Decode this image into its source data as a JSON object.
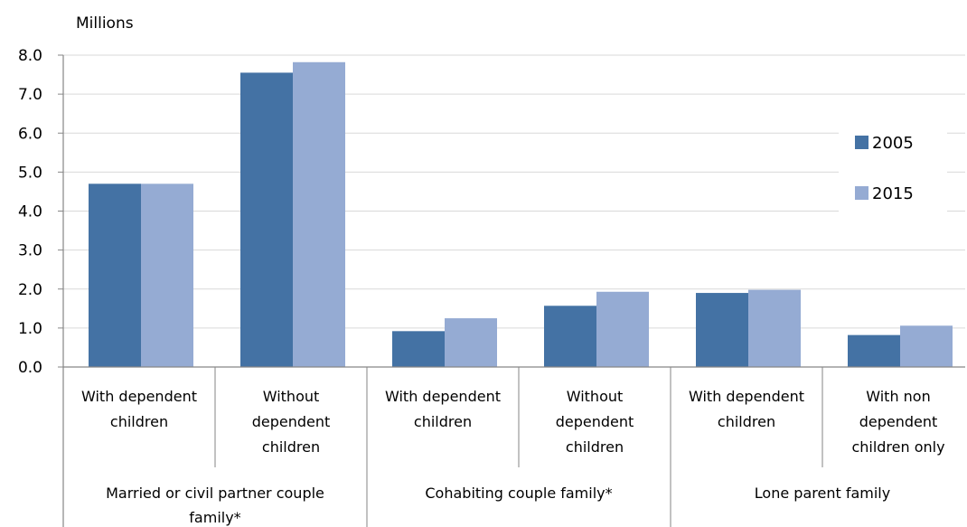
{
  "chart_data": {
    "type": "bar",
    "unit_label": "Millions",
    "categories": [
      [
        "With dependent",
        "children"
      ],
      [
        "Without",
        "dependent",
        "children"
      ],
      [
        "With dependent",
        "children"
      ],
      [
        "Without",
        "dependent",
        "children"
      ],
      [
        "With dependent",
        "children"
      ],
      [
        "With non",
        "dependent",
        "children only"
      ]
    ],
    "groups": [
      {
        "label": [
          "Married or civil partner couple",
          "family*"
        ],
        "span": [
          0,
          1
        ]
      },
      {
        "label": [
          "Cohabiting couple family*"
        ],
        "span": [
          2,
          3
        ]
      },
      {
        "label": [
          "Lone parent family"
        ],
        "span": [
          4,
          5
        ]
      }
    ],
    "series": [
      {
        "name": "2005",
        "color": "#4472a4",
        "values": [
          4.7,
          7.55,
          0.92,
          1.57,
          1.9,
          0.82
        ]
      },
      {
        "name": "2015",
        "color": "#95abd3",
        "values": [
          4.7,
          7.82,
          1.25,
          1.93,
          1.98,
          1.06
        ]
      }
    ],
    "ylim": [
      0,
      8
    ],
    "yticks": [
      "0.0",
      "1.0",
      "2.0",
      "3.0",
      "4.0",
      "5.0",
      "6.0",
      "7.0",
      "8.0"
    ],
    "grid": true,
    "legend_position": "right"
  }
}
